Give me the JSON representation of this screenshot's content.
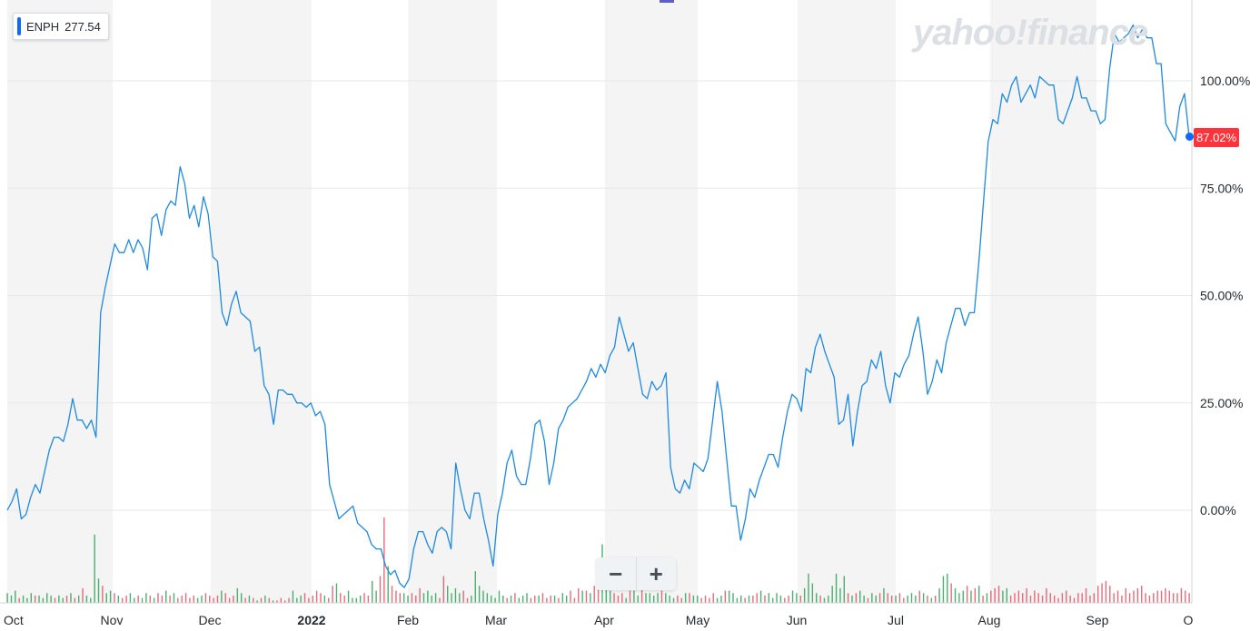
{
  "ticker": {
    "symbol": "ENPH",
    "price": "277.54"
  },
  "watermark": "yahoo!finance",
  "last_value_label": "87.02%",
  "zoom": {
    "minus": "−",
    "plus": "+"
  },
  "colors": {
    "line": "#1c8ae6",
    "up": "#1e9e4a",
    "down": "#e2465a",
    "band": "#f4f4f4",
    "badge": "#ff333a"
  },
  "chart_data": {
    "type": "line",
    "title": "",
    "xlabel": "",
    "ylabel": "",
    "ylim": [
      -20,
      117
    ],
    "yticks": [
      0,
      25,
      50,
      75,
      100
    ],
    "ytick_labels": [
      "0.00%",
      "25.00%",
      "50.00%",
      "75.00%",
      "100.00%"
    ],
    "months": [
      "Oct",
      "Nov",
      "Dec",
      "2022",
      "Feb",
      "Mar",
      "Apr",
      "May",
      "Jun",
      "Jul",
      "Aug",
      "Sep",
      "O"
    ],
    "series": [
      {
        "values": [
          0,
          2,
          5,
          -2,
          -1,
          3,
          6,
          4,
          9,
          14,
          17,
          17,
          16,
          20,
          26,
          21,
          21,
          19,
          21,
          17,
          46,
          52,
          57,
          62,
          60,
          60,
          63,
          60,
          63,
          61,
          56,
          68,
          69,
          64,
          70,
          72,
          71,
          80,
          76,
          68,
          71,
          66,
          73,
          69,
          59,
          58,
          46,
          43,
          48,
          51,
          46,
          45,
          44,
          37,
          38,
          29,
          27,
          20,
          28,
          28,
          27,
          27,
          25,
          25,
          24,
          25,
          22,
          23,
          20,
          6,
          2,
          -2,
          -1,
          0,
          1,
          -3,
          -4,
          -5,
          -8,
          -9,
          -9,
          -13,
          -15,
          -14,
          -17,
          -18,
          -16,
          -9,
          -5,
          -5,
          -8,
          -10,
          -5,
          -4,
          -5,
          -9,
          11,
          5,
          0,
          -2,
          4,
          4,
          -2,
          -7,
          -13,
          -1,
          4,
          11,
          14,
          8,
          6,
          6,
          12,
          20,
          21,
          16,
          6,
          11,
          19,
          21,
          24,
          25,
          26,
          28,
          30,
          33,
          31,
          34,
          32,
          36,
          38,
          45,
          41,
          37,
          39,
          33,
          27,
          26,
          30,
          28,
          29,
          32,
          10,
          5,
          4,
          7,
          5,
          11,
          10,
          9,
          12,
          21,
          30,
          23,
          12,
          1,
          1,
          -7,
          -2,
          5,
          3,
          7,
          10,
          13,
          13,
          10,
          17,
          23,
          27,
          26,
          23,
          33,
          32,
          38,
          41,
          37,
          34,
          31,
          20,
          21,
          27,
          15,
          23,
          29,
          30,
          35,
          33,
          37,
          29,
          25,
          32,
          31,
          34,
          36,
          41,
          45,
          37,
          27,
          30,
          35,
          32,
          39,
          43,
          47,
          47,
          43,
          46,
          46,
          58,
          72,
          86,
          91,
          90,
          97,
          95,
          99,
          101,
          95,
          97,
          99,
          96,
          101,
          100,
          99,
          99,
          91,
          90,
          93,
          96,
          101,
          96,
          96,
          93,
          93,
          90,
          91,
          103,
          111,
          109,
          110,
          111,
          113,
          110,
          112,
          110,
          110,
          104,
          104,
          90,
          88,
          86,
          94,
          97,
          87
        ]
      }
    ],
    "volume": [
      4,
      3,
      5,
      2,
      3,
      2,
      4,
      3,
      3,
      2,
      4,
      3,
      2,
      3,
      2,
      3,
      4,
      2,
      3,
      6,
      3,
      2,
      28,
      10,
      7,
      4,
      5,
      4,
      3,
      2,
      3,
      4,
      2,
      3,
      2,
      4,
      3,
      2,
      4,
      3,
      5,
      3,
      4,
      2,
      3,
      4,
      2,
      3,
      2,
      3,
      4,
      3,
      2,
      3,
      5,
      4,
      2,
      3,
      6,
      4,
      2,
      3,
      2,
      1,
      2,
      3,
      2,
      1,
      1,
      2,
      1,
      2,
      5,
      2,
      3,
      4,
      2,
      3,
      5,
      4,
      3,
      2,
      7,
      8,
      4,
      3,
      5,
      2,
      2,
      3,
      4,
      3,
      9,
      5,
      11,
      35,
      15,
      7,
      5,
      4,
      4,
      3,
      4,
      3,
      6,
      4,
      5,
      3,
      4,
      2,
      11,
      7,
      4,
      6,
      4,
      5,
      2,
      3,
      13,
      7,
      5,
      4,
      3,
      2,
      5,
      3,
      2,
      3,
      4,
      2,
      3,
      4,
      2,
      3,
      3,
      4,
      2,
      3,
      3,
      2,
      4,
      3,
      5,
      2,
      6,
      5,
      5,
      4,
      7,
      12,
      24,
      10,
      5,
      4,
      3,
      4,
      2,
      5,
      5,
      3,
      6,
      4,
      4,
      3,
      4,
      5,
      4,
      3,
      2,
      3,
      2,
      4,
      4,
      3,
      3,
      2,
      3,
      2,
      4,
      2,
      3,
      5,
      5,
      4,
      2,
      3,
      2,
      3,
      3,
      4,
      5,
      3,
      4,
      2,
      4,
      3,
      2,
      3,
      5,
      4,
      3,
      6,
      12,
      8,
      4,
      3,
      2,
      3,
      7,
      12,
      6,
      11,
      4,
      3,
      4,
      5,
      3,
      2,
      4,
      3,
      4,
      6,
      4,
      3,
      3,
      4,
      2,
      3,
      4,
      3,
      5,
      4,
      3,
      2,
      3,
      6,
      11,
      12,
      8,
      6,
      4,
      5,
      7,
      5,
      6,
      7,
      3,
      4,
      5,
      6,
      7,
      5,
      6,
      3,
      4,
      5,
      4,
      6,
      3,
      5,
      4,
      3,
      6,
      4,
      3,
      2,
      4,
      5,
      3,
      2,
      4,
      4,
      6,
      3,
      4,
      7,
      8,
      9,
      7,
      4,
      5,
      3,
      6,
      4,
      5,
      6,
      7,
      4,
      3,
      4,
      5,
      5,
      6,
      5,
      4,
      4,
      6,
      5,
      4
    ]
  }
}
